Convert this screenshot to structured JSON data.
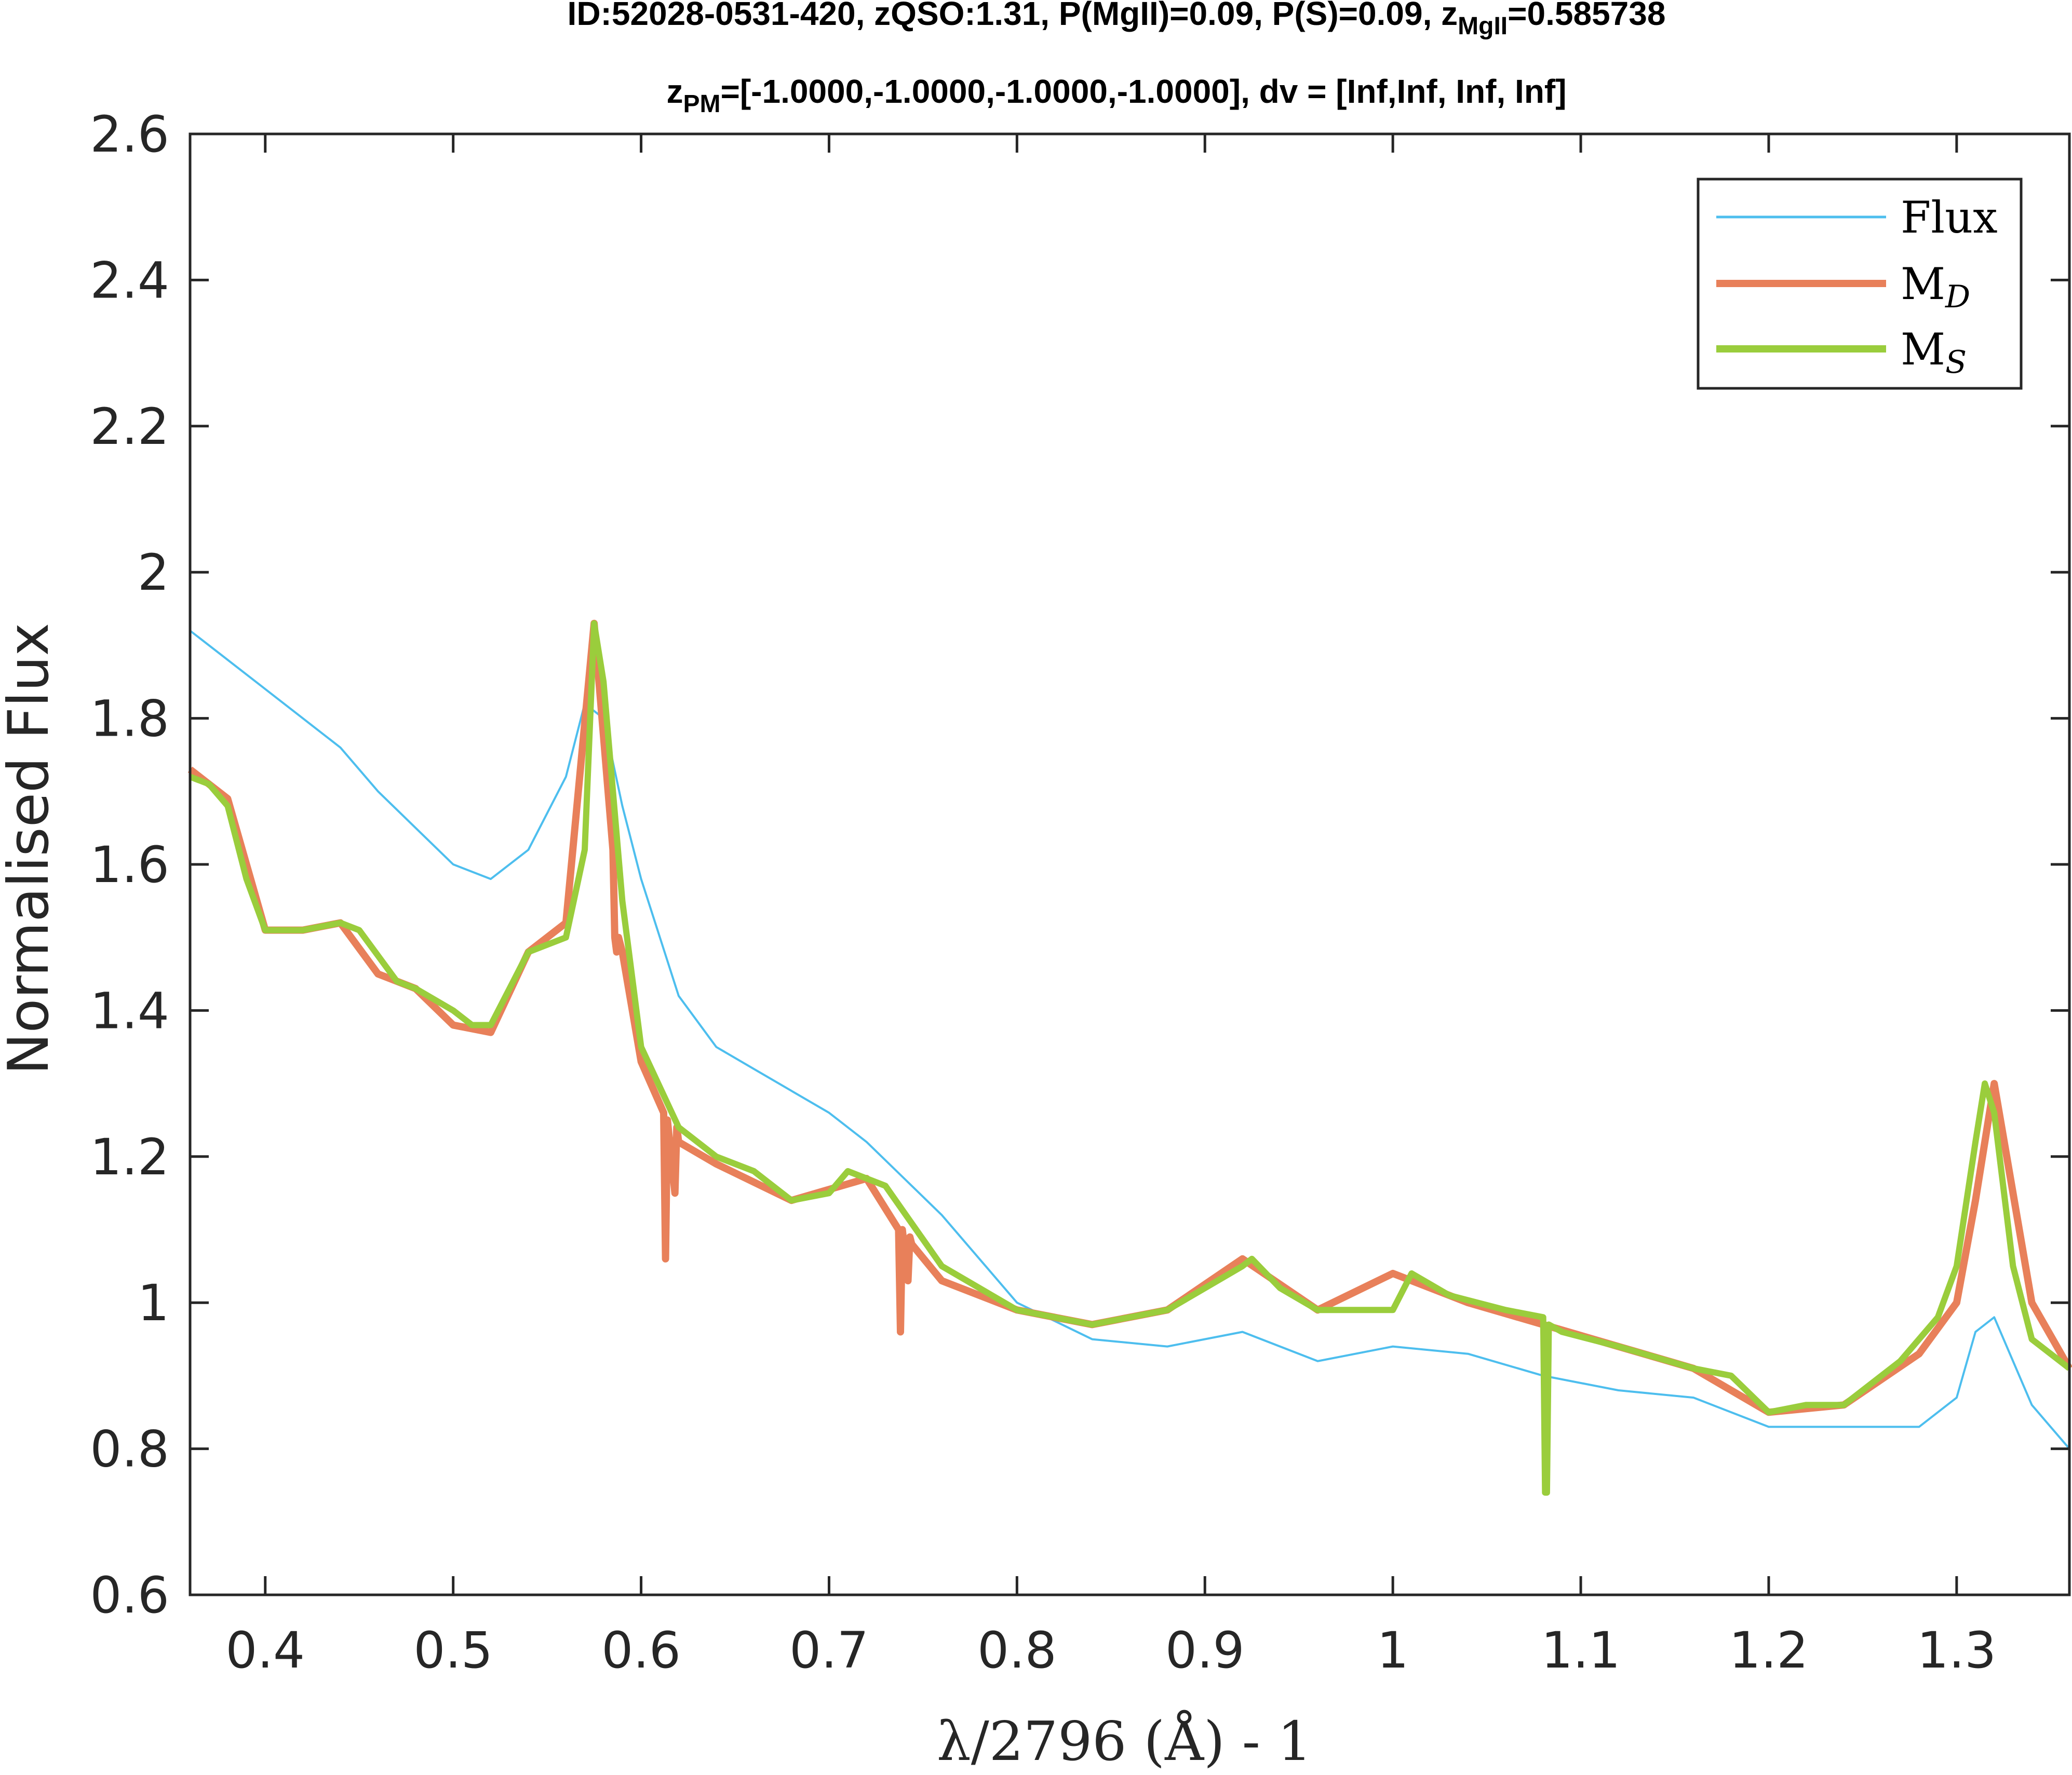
{
  "chart_data": {
    "type": "line",
    "title_line1": {
      "main": "ID:52028-0531-420, zQSO:1.31, P(MgII)=0.09, P(S)=0.09, z",
      "sub": "MgII",
      "tail": "=0.585738"
    },
    "title_line2": {
      "main": "z",
      "sub": "PM",
      "tail": "=[-1.0000,-1.0000,-1.0000,-1.0000], dv = [Inf,Inf, Inf, Inf]"
    },
    "xlabel": "λ/2796 (Å) - 1",
    "ylabel": "Normalised Flux",
    "xlim": [
      0.36,
      1.36
    ],
    "ylim": [
      0.6,
      2.6
    ],
    "x_ticks": [
      0.4,
      0.5,
      0.6,
      0.7,
      0.8,
      0.9,
      1.0,
      1.1,
      1.2,
      1.3
    ],
    "x_tick_labels": [
      "0.4",
      "0.5",
      "0.6",
      "0.7",
      "0.8",
      "0.9",
      "1",
      "1.1",
      "1.2",
      "1.3"
    ],
    "y_ticks": [
      0.6,
      0.8,
      1.0,
      1.2,
      1.4,
      1.6,
      1.8,
      2.0,
      2.2,
      2.4,
      2.6
    ],
    "y_tick_labels": [
      "0.6",
      "0.8",
      "1",
      "1.2",
      "1.4",
      "1.6",
      "1.8",
      "2",
      "2.2",
      "2.4",
      "2.6"
    ],
    "grid": false,
    "legend_position": "top-right",
    "series": [
      {
        "name": "Flux",
        "label_main": "Flux",
        "label_sub": "",
        "color": "#4DBEEE",
        "x": [
          0.36,
          0.38,
          0.4,
          0.42,
          0.44,
          0.46,
          0.48,
          0.5,
          0.52,
          0.54,
          0.56,
          0.57,
          0.58,
          0.59,
          0.6,
          0.62,
          0.64,
          0.66,
          0.68,
          0.7,
          0.72,
          0.74,
          0.76,
          0.78,
          0.8,
          0.84,
          0.88,
          0.92,
          0.96,
          1.0,
          1.04,
          1.08,
          1.12,
          1.16,
          1.2,
          1.24,
          1.28,
          1.3,
          1.31,
          1.32,
          1.34,
          1.36
        ],
        "y": [
          1.92,
          1.88,
          1.84,
          1.8,
          1.76,
          1.7,
          1.65,
          1.6,
          1.58,
          1.62,
          1.72,
          1.82,
          1.8,
          1.68,
          1.58,
          1.42,
          1.35,
          1.32,
          1.29,
          1.26,
          1.22,
          1.17,
          1.12,
          1.06,
          1.0,
          0.95,
          0.94,
          0.96,
          0.92,
          0.94,
          0.93,
          0.9,
          0.88,
          0.87,
          0.83,
          0.83,
          0.83,
          0.87,
          0.96,
          0.98,
          0.86,
          0.8
        ]
      },
      {
        "name": "M_D",
        "label_main": "M",
        "label_sub": "D",
        "color": "#E8805A",
        "x": [
          0.36,
          0.38,
          0.4,
          0.42,
          0.44,
          0.46,
          0.48,
          0.5,
          0.52,
          0.54,
          0.56,
          0.575,
          0.585,
          0.586,
          0.587,
          0.588,
          0.59,
          0.6,
          0.612,
          0.613,
          0.614,
          0.618,
          0.619,
          0.62,
          0.64,
          0.68,
          0.72,
          0.737,
          0.738,
          0.739,
          0.742,
          0.743,
          0.744,
          0.76,
          0.8,
          0.84,
          0.88,
          0.92,
          0.96,
          1.0,
          1.04,
          1.08,
          1.12,
          1.16,
          1.2,
          1.24,
          1.28,
          1.3,
          1.31,
          1.32,
          1.34,
          1.36
        ],
        "y": [
          1.73,
          1.69,
          1.51,
          1.51,
          1.52,
          1.45,
          1.43,
          1.38,
          1.37,
          1.48,
          1.52,
          1.93,
          1.62,
          1.5,
          1.48,
          1.5,
          1.48,
          1.33,
          1.26,
          1.06,
          1.25,
          1.15,
          1.24,
          1.22,
          1.19,
          1.14,
          1.17,
          1.1,
          0.96,
          1.1,
          1.03,
          1.09,
          1.08,
          1.03,
          0.99,
          0.97,
          0.99,
          1.06,
          0.99,
          1.04,
          1.0,
          0.97,
          0.94,
          0.91,
          0.85,
          0.86,
          0.93,
          1.0,
          1.14,
          1.3,
          1.0,
          0.91
        ]
      },
      {
        "name": "M_S",
        "label_main": "M",
        "label_sub": "S",
        "color": "#9ACD3C",
        "x": [
          0.36,
          0.37,
          0.38,
          0.39,
          0.4,
          0.42,
          0.44,
          0.45,
          0.47,
          0.48,
          0.5,
          0.51,
          0.52,
          0.53,
          0.54,
          0.56,
          0.57,
          0.575,
          0.58,
          0.59,
          0.6,
          0.62,
          0.64,
          0.66,
          0.68,
          0.7,
          0.71,
          0.73,
          0.76,
          0.8,
          0.84,
          0.88,
          0.9,
          0.92,
          0.925,
          0.94,
          0.96,
          0.98,
          1.0,
          1.01,
          1.03,
          1.06,
          1.08,
          1.081,
          1.082,
          1.083,
          1.09,
          1.12,
          1.16,
          1.18,
          1.2,
          1.22,
          1.24,
          1.27,
          1.29,
          1.3,
          1.31,
          1.315,
          1.32,
          1.33,
          1.34,
          1.36
        ],
        "y": [
          1.72,
          1.71,
          1.68,
          1.58,
          1.51,
          1.51,
          1.52,
          1.51,
          1.44,
          1.43,
          1.4,
          1.38,
          1.38,
          1.43,
          1.48,
          1.5,
          1.62,
          1.93,
          1.85,
          1.55,
          1.35,
          1.24,
          1.2,
          1.18,
          1.14,
          1.15,
          1.18,
          1.16,
          1.05,
          0.99,
          0.97,
          0.99,
          1.02,
          1.05,
          1.06,
          1.02,
          0.99,
          0.99,
          0.99,
          1.04,
          1.01,
          0.99,
          0.98,
          0.74,
          0.74,
          0.97,
          0.96,
          0.94,
          0.91,
          0.9,
          0.85,
          0.86,
          0.86,
          0.92,
          0.98,
          1.05,
          1.22,
          1.3,
          1.26,
          1.05,
          0.95,
          0.91
        ]
      }
    ]
  }
}
